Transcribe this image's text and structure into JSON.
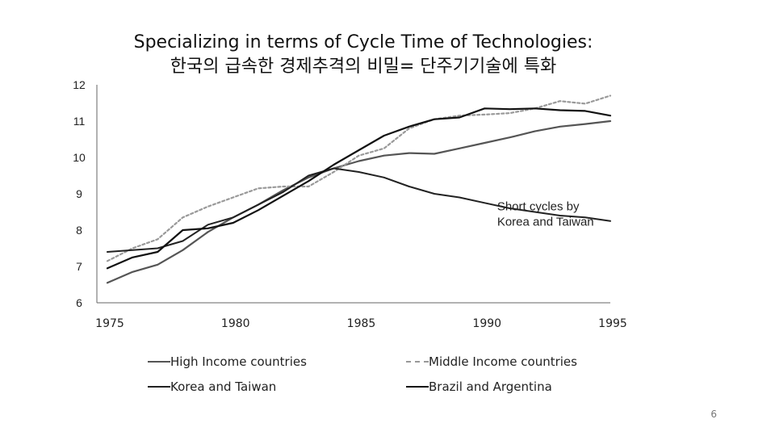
{
  "title": {
    "line1": "Specializing in terms of Cycle Time of Technologies:",
    "line2": "한국의 급속한 경제추격의 비밀= 단주기기술에 특화"
  },
  "page_number": "6",
  "chart_data": {
    "type": "line",
    "title": "Specializing in terms of Cycle Time of Technologies: 한국의 급속한 경제추격의 비밀= 단주기기술에 특화",
    "xlabel": "",
    "ylabel": "",
    "x": [
      1975,
      1976,
      1977,
      1978,
      1979,
      1980,
      1981,
      1982,
      1983,
      1984,
      1985,
      1986,
      1987,
      1988,
      1989,
      1990,
      1991,
      1992,
      1993,
      1994,
      1995
    ],
    "x_ticks": [
      "1975",
      "1980",
      "1985",
      "1990",
      "1995"
    ],
    "x_tick_values": [
      1975,
      1980,
      1985,
      1990,
      1995
    ],
    "y_ticks": [
      "6",
      "7",
      "8",
      "9",
      "10",
      "11",
      "12"
    ],
    "y_tick_values": [
      6,
      7,
      8,
      9,
      10,
      11,
      12
    ],
    "xlim": [
      1975,
      1995
    ],
    "ylim": [
      6,
      12
    ],
    "grid": false,
    "legend_position": "bottom",
    "annotation": {
      "lines": [
        "Short cycles by",
        "Korea and Taiwan"
      ],
      "anchor_x": 1990.5,
      "anchor_y": 8.55
    },
    "series": [
      {
        "name": "High Income countries",
        "color": "#555555",
        "dash": "solid",
        "width": 2.2,
        "values": [
          6.55,
          6.85,
          7.05,
          7.45,
          7.95,
          8.35,
          8.7,
          9.1,
          9.45,
          9.7,
          9.9,
          10.05,
          10.12,
          10.1,
          10.25,
          10.4,
          10.55,
          10.72,
          10.85,
          10.92,
          11.0
        ]
      },
      {
        "name": "Middle Income countries",
        "color": "#999999",
        "dash": "dashed",
        "width": 2.2,
        "values": [
          7.15,
          7.5,
          7.75,
          8.35,
          8.65,
          8.9,
          9.15,
          9.2,
          9.2,
          9.6,
          10.05,
          10.25,
          10.8,
          11.05,
          11.15,
          11.18,
          11.22,
          11.35,
          11.55,
          11.48,
          11.7
        ]
      },
      {
        "name": "Korea and Taiwan",
        "color": "#222222",
        "dash": "solid",
        "width": 2.0,
        "values": [
          7.4,
          7.45,
          7.5,
          7.7,
          8.15,
          8.35,
          8.7,
          9.05,
          9.5,
          9.7,
          9.6,
          9.45,
          9.2,
          9.0,
          8.9,
          8.75,
          8.6,
          8.5,
          8.4,
          8.35,
          8.25
        ]
      },
      {
        "name": "Brazil and Argentina",
        "color": "#111111",
        "dash": "solid",
        "width": 2.2,
        "values": [
          6.95,
          7.25,
          7.4,
          8.0,
          8.05,
          8.2,
          8.55,
          8.95,
          9.35,
          9.8,
          10.2,
          10.6,
          10.85,
          11.05,
          11.1,
          11.35,
          11.33,
          11.35,
          11.3,
          11.28,
          11.15
        ]
      }
    ]
  }
}
